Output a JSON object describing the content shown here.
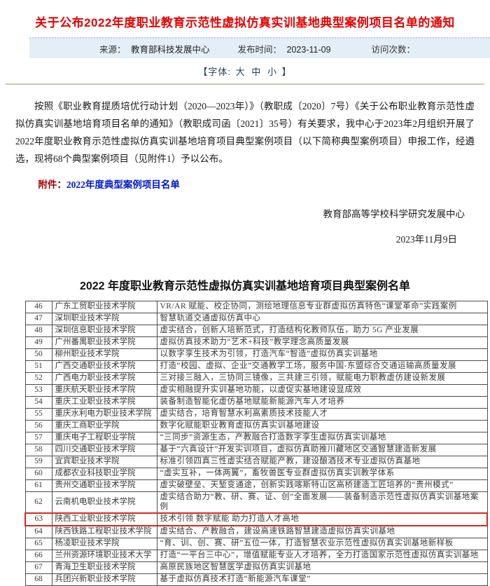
{
  "page": {
    "title": "关于公布2022年度职业教育示范性虚拟仿真实训基地典型案例项目名单的通知",
    "meta": {
      "source_label": "来源：",
      "source_value": "教育部科技发展中心",
      "publish_label": "发布时间：",
      "publish_value": "2023-11-09",
      "visits_label": "访问次数："
    },
    "font_selector": {
      "prefix": "【字体:",
      "large": "大",
      "medium": "中",
      "small": "小",
      "suffix": "】"
    },
    "body_paragraph": "按照《职业教育提质培优行动计划（2020—2023年）》（教职成〔2020〕7号）《关于公布职业教育示范性虚拟仿真实训基地培育项目名单的通知》（教职成司函〔2021〕35号）有关要求，我中心于2023年2月组织开展了2022年度职业教育示范性虚拟仿真实训基地培育项目典型案例项目（以下简称典型案例项目）申报工作，经遴选，现将68个典型案例项目（见附件1）予以公布。",
    "attachment": {
      "label": "附件：",
      "link": "2022年度典型案例项目名单"
    },
    "signature": {
      "org": "教育部高等学校科学研究发展中心",
      "date": "2023年11月9日"
    }
  },
  "table": {
    "title": "2022 年度职业教育示范性虚拟仿真实训基地培育项目典型案例名单",
    "highlighted_no": "63",
    "rows": [
      {
        "no": "46",
        "school": "广东工贸职业技术学院",
        "desc": "VR/AR 赋能、校企协同，测绘地理信息专业群虚拟仿真特色“课堂革命”实践案例"
      },
      {
        "no": "47",
        "school": "深圳职业技术学院",
        "desc": "智慧轨道交通虚拟仿真中心"
      },
      {
        "no": "48",
        "school": "深圳信息职业技术学院",
        "desc": "虚实结合，创新人培新范式，打造结构化教师队伍，助力 5G 产业发展"
      },
      {
        "no": "49",
        "school": "广州番禺职业技术学院",
        "desc": "虚拟仿真技术助力“艺术+科技”教学理念高质量发展"
      },
      {
        "no": "50",
        "school": "柳州职业技术学院",
        "desc": "以数字孪生技术为引领，打造汽车“智造”虚拟仿真实训基地"
      },
      {
        "no": "51",
        "school": "广西交通职业技术学院",
        "desc": "打造“校园、虚拟、企业”交通教学工场，服务中国-东盟综合交通运输高质量发展"
      },
      {
        "no": "52",
        "school": "广西电力职业技术学院",
        "desc": "三对接三融入，三协同三镜像，三共建三引领，赋能电力职教虚仿建设新发展"
      },
      {
        "no": "53",
        "school": "重庆航天职业技术学院",
        "desc": "虚实相融提升实训基地功能，以虚促实基地建设显成效"
      },
      {
        "no": "54",
        "school": "重庆工业职业技术学院",
        "desc": "装备制造智能化虚仿基地赋能新能源汽车人才培养"
      },
      {
        "no": "55",
        "school": "重庆水利电力职业技术学院",
        "desc": "虚实结合，培育智慧水利高素质技术技能人才"
      },
      {
        "no": "56",
        "school": "重庆工商职业学院",
        "desc": "数字化赋能职业教育虚拟仿真实训基地建设"
      },
      {
        "no": "57",
        "school": "重庆电子工程职业学院",
        "desc": "“三同步”资源生态，产教融合打造数字孪生虚拟仿真实训基地"
      },
      {
        "no": "58",
        "school": "四川交通职业技术学院",
        "desc": "基于“六真设计”开发实训项目，虚拟仿真助推川藏地区交通智慧建造新发展"
      },
      {
        "no": "59",
        "school": "宜宾职业技术学院",
        "desc": "标准引领四真三性虚实结合赋能产教，建设酿酒技术专业虚拟仿真基地"
      },
      {
        "no": "60",
        "school": "成都农业科技职业学院",
        "desc": "“虚实互补，一体两翼”，畜牧兽医专业群虚拟仿真实训教学体系"
      },
      {
        "no": "61",
        "school": "贵州交通职业技术学院",
        "desc": "虚实破壁垒、天堑变通途，创新实践喀斯特山区高桥建造工匠培养的“贵州模式”"
      },
      {
        "no": "62",
        "school": "云南机电职业技术学院",
        "desc": "虚实结合助力“教、研、赛、证、创”全面发展——装备制造示范性虚拟仿真实训基地案例"
      },
      {
        "no": "63",
        "school": "陕西工业职业技术学院",
        "desc": "技术引领 数字赋能 助力打造人才高地"
      },
      {
        "no": "64",
        "school": "陕西铁路工程职业技术学院",
        "desc": "虚实结合、产教融合，建设高速铁路智慧建造虚拟仿真实训基地"
      },
      {
        "no": "65",
        "school": "杨凌职业技术学院",
        "desc": "“育、训、创、赛、研”五位一体，打造智慧农业示范性虚拟仿真实训基地新样板"
      },
      {
        "no": "66",
        "school": "兰州资源环境职业技术大学",
        "desc": "打造“一平台三中心”，增值赋能专业人才培养，全力打造国家示范性虚拟仿真实训基地"
      },
      {
        "no": "67",
        "school": "青海卫生职业技术学院",
        "desc": "高原民族地区智慧医学虚拟仿真实训基地"
      },
      {
        "no": "68",
        "school": "兵团兴新职业技术学院",
        "desc": "基于虚拟仿真技术打造“新能源汽车课堂”"
      }
    ]
  },
  "colors": {
    "title_red": "#e60000",
    "meta_bar_bg": "#e3eef7",
    "attachment_label_red": "#a40000",
    "attachment_link_blue": "#0018cc",
    "highlight_border_red": "#d8281e",
    "divider_tan": "#cfc7b6"
  }
}
